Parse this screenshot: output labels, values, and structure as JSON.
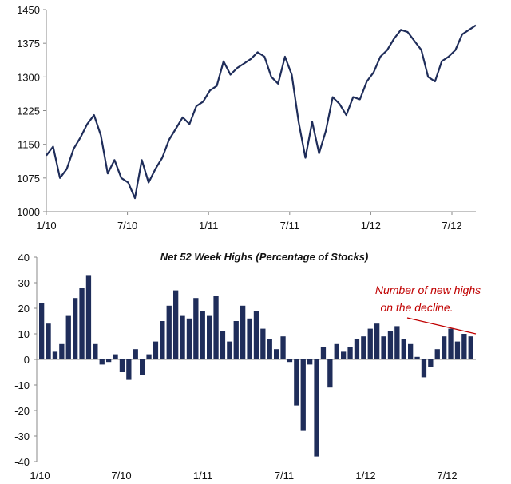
{
  "chart_data": [
    {
      "type": "line",
      "title": "",
      "xlabel": "",
      "ylabel": "",
      "ylim": [
        1000,
        1450
      ],
      "y_ticks": [
        "1000",
        "1075",
        "1150",
        "1225",
        "1300",
        "1375",
        "1450"
      ],
      "x_ticks": [
        "1/10",
        "7/10",
        "1/11",
        "7/11",
        "1/12",
        "7/12"
      ],
      "line_color": "#1f2d5a",
      "grid": false,
      "series": [
        {
          "x": [
            "2010-01",
            "2010-01",
            "2010-02",
            "2010-02",
            "2010-03",
            "2010-03",
            "2010-04",
            "2010-04",
            "2010-05",
            "2010-05",
            "2010-06",
            "2010-06",
            "2010-07",
            "2010-07",
            "2010-08",
            "2010-08",
            "2010-09",
            "2010-09",
            "2010-10",
            "2010-10",
            "2010-11",
            "2010-11",
            "2010-12",
            "2010-12",
            "2011-01",
            "2011-01",
            "2011-02",
            "2011-03",
            "2011-03",
            "2011-04",
            "2011-04",
            "2011-05",
            "2011-05",
            "2011-06",
            "2011-06",
            "2011-07",
            "2011-07",
            "2011-08",
            "2011-08",
            "2011-09",
            "2011-09",
            "2011-10",
            "2011-10",
            "2011-11",
            "2011-11",
            "2011-12",
            "2011-12",
            "2012-01",
            "2012-01",
            "2012-02",
            "2012-02",
            "2012-03",
            "2012-03",
            "2012-04",
            "2012-04",
            "2012-05",
            "2012-05",
            "2012-06",
            "2012-06",
            "2012-07",
            "2012-07",
            "2012-08",
            "2012-08",
            "2012-09"
          ],
          "values": [
            1125,
            1145,
            1075,
            1095,
            1140,
            1165,
            1195,
            1215,
            1170,
            1085,
            1115,
            1075,
            1065,
            1030,
            1115,
            1065,
            1095,
            1120,
            1160,
            1185,
            1210,
            1195,
            1235,
            1245,
            1270,
            1280,
            1335,
            1305,
            1320,
            1330,
            1340,
            1355,
            1345,
            1300,
            1285,
            1345,
            1305,
            1200,
            1120,
            1200,
            1130,
            1180,
            1255,
            1240,
            1215,
            1255,
            1250,
            1290,
            1310,
            1345,
            1360,
            1385,
            1405,
            1400,
            1380,
            1360,
            1300,
            1290,
            1335,
            1345,
            1360,
            1395,
            1405,
            1415
          ]
        }
      ]
    },
    {
      "type": "bar",
      "title": "Net 52 Week Highs (Percentage of Stocks)",
      "xlabel": "",
      "ylabel": "",
      "ylim": [
        -40,
        40
      ],
      "y_ticks": [
        "40",
        "30",
        "20",
        "10",
        "0",
        "-10",
        "-20",
        "-30",
        "-40"
      ],
      "x_ticks": [
        "1/10",
        "7/10",
        "1/11",
        "7/11",
        "1/12",
        "7/12"
      ],
      "bar_color": "#1f2d5a",
      "annotation": {
        "lines": [
          "Number of new highs",
          "on the decline."
        ],
        "color": "#c00000"
      },
      "series": [
        {
          "x": [
            "2010-01",
            "2010-01",
            "2010-02",
            "2010-02",
            "2010-03",
            "2010-03",
            "2010-04",
            "2010-04",
            "2010-05",
            "2010-05",
            "2010-06",
            "2010-06",
            "2010-07",
            "2010-07",
            "2010-08",
            "2010-08",
            "2010-09",
            "2010-09",
            "2010-10",
            "2010-10",
            "2010-11",
            "2010-11",
            "2010-12",
            "2010-12",
            "2011-01",
            "2011-01",
            "2011-02",
            "2011-02",
            "2011-03",
            "2011-03",
            "2011-04",
            "2011-04",
            "2011-05",
            "2011-05",
            "2011-06",
            "2011-06",
            "2011-07",
            "2011-07",
            "2011-08",
            "2011-08",
            "2011-09",
            "2011-09",
            "2011-10",
            "2011-10",
            "2011-11",
            "2011-11",
            "2011-12",
            "2011-12",
            "2012-01",
            "2012-01",
            "2012-02",
            "2012-02",
            "2012-03",
            "2012-03",
            "2012-04",
            "2012-04",
            "2012-05",
            "2012-05",
            "2012-06",
            "2012-06",
            "2012-07",
            "2012-07",
            "2012-08",
            "2012-08",
            "2012-09"
          ],
          "values": [
            22,
            14,
            3,
            6,
            17,
            24,
            28,
            33,
            6,
            -2,
            -1,
            2,
            -5,
            -8,
            4,
            -6,
            2,
            7,
            15,
            21,
            27,
            17,
            16,
            24,
            19,
            17,
            25,
            11,
            7,
            15,
            21,
            16,
            19,
            12,
            8,
            4,
            9,
            -1,
            -18,
            -28,
            -2,
            -38,
            5,
            -11,
            6,
            3,
            5,
            8,
            9,
            12,
            14,
            9,
            11,
            13,
            8,
            6,
            1,
            -7,
            -3,
            4,
            9,
            12,
            7,
            10,
            9
          ]
        }
      ]
    }
  ]
}
